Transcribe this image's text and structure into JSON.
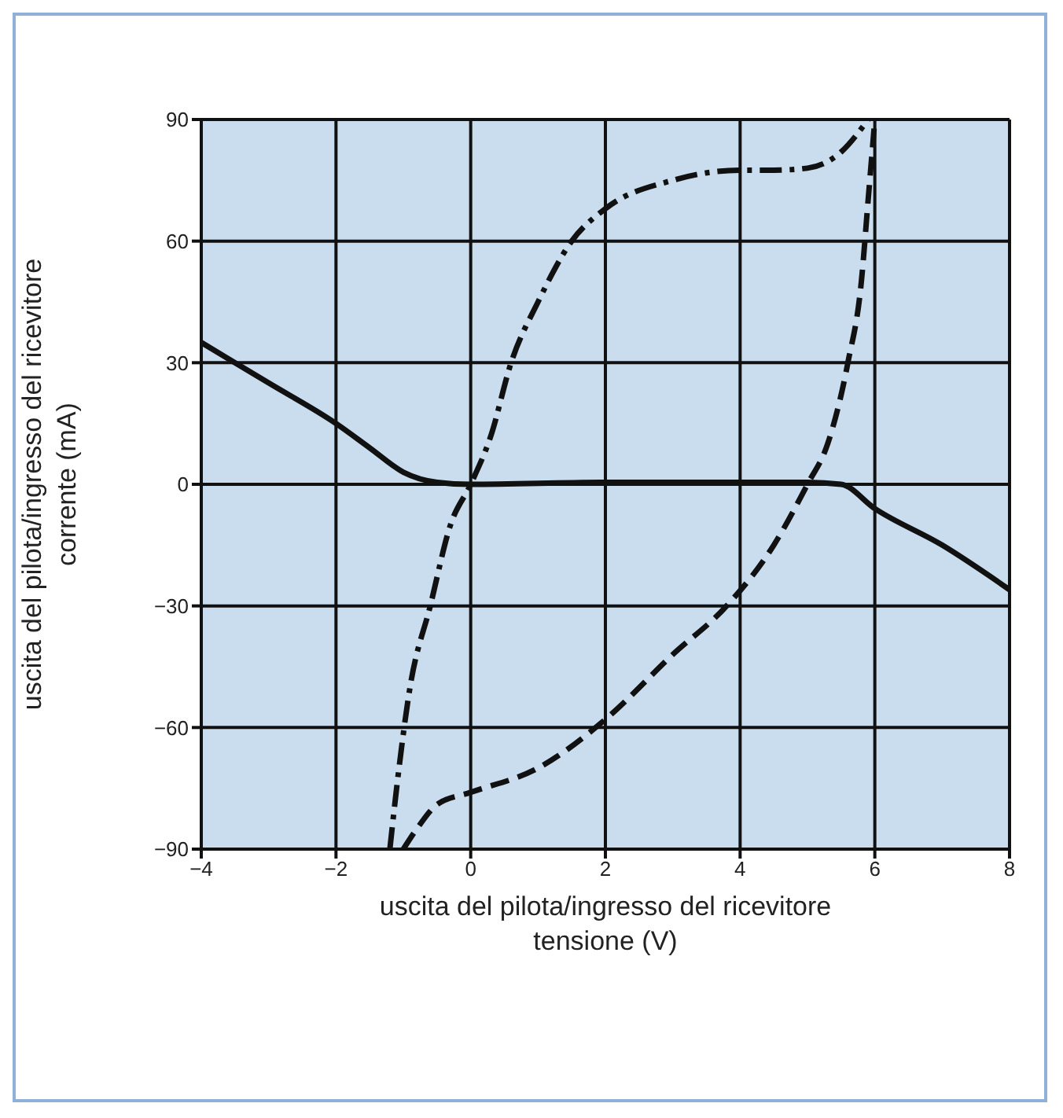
{
  "chart_data": {
    "type": "line",
    "xlabel": "uscita del pilota/ingresso del ricevitore\ntensione (V)",
    "ylabel": "uscita del pilota/ingresso del ricevitore\ncorrente (mA)",
    "xlim": [
      -4,
      8
    ],
    "xticks": [
      -4,
      -2,
      0,
      2,
      4,
      6,
      8
    ],
    "ylim": [
      -90,
      90
    ],
    "yticks": [
      -90,
      -60,
      -30,
      0,
      30,
      60,
      90
    ],
    "grid": true,
    "legend": false,
    "series": [
      {
        "color": "#111111",
        "line_style": "solid",
        "x": [
          -4,
          -3,
          -2,
          -1.5,
          -1,
          -0.5,
          0,
          2,
          4,
          5,
          5.5,
          6,
          7,
          8
        ],
        "values": [
          35,
          25,
          15,
          9,
          3,
          0.5,
          0,
          0.5,
          0.5,
          0.5,
          0,
          -6,
          -15,
          -26
        ]
      },
      {
        "color": "#111111",
        "line_style": "dashdot",
        "x": [
          -1.2,
          -1.1,
          -0.9,
          -0.6,
          -0.3,
          0,
          0.3,
          0.6,
          1,
          1.5,
          2,
          3,
          4,
          4.5,
          5,
          5.5,
          5.9
        ],
        "values": [
          -90,
          -75,
          -50,
          -30,
          -10,
          0,
          12,
          30,
          45,
          60,
          68,
          75,
          77.5,
          77.5,
          78,
          82,
          90
        ]
      },
      {
        "color": "#111111",
        "line_style": "dashed",
        "x": [
          -1,
          -0.8,
          -0.5,
          0,
          1,
          2,
          3,
          3.8,
          4.5,
          5,
          5.3,
          5.6,
          5.8,
          5.9,
          6
        ],
        "values": [
          -90,
          -85,
          -79,
          -76,
          -70,
          -58,
          -42,
          -30,
          -15,
          0,
          10,
          30,
          50,
          70,
          90
        ]
      }
    ]
  }
}
